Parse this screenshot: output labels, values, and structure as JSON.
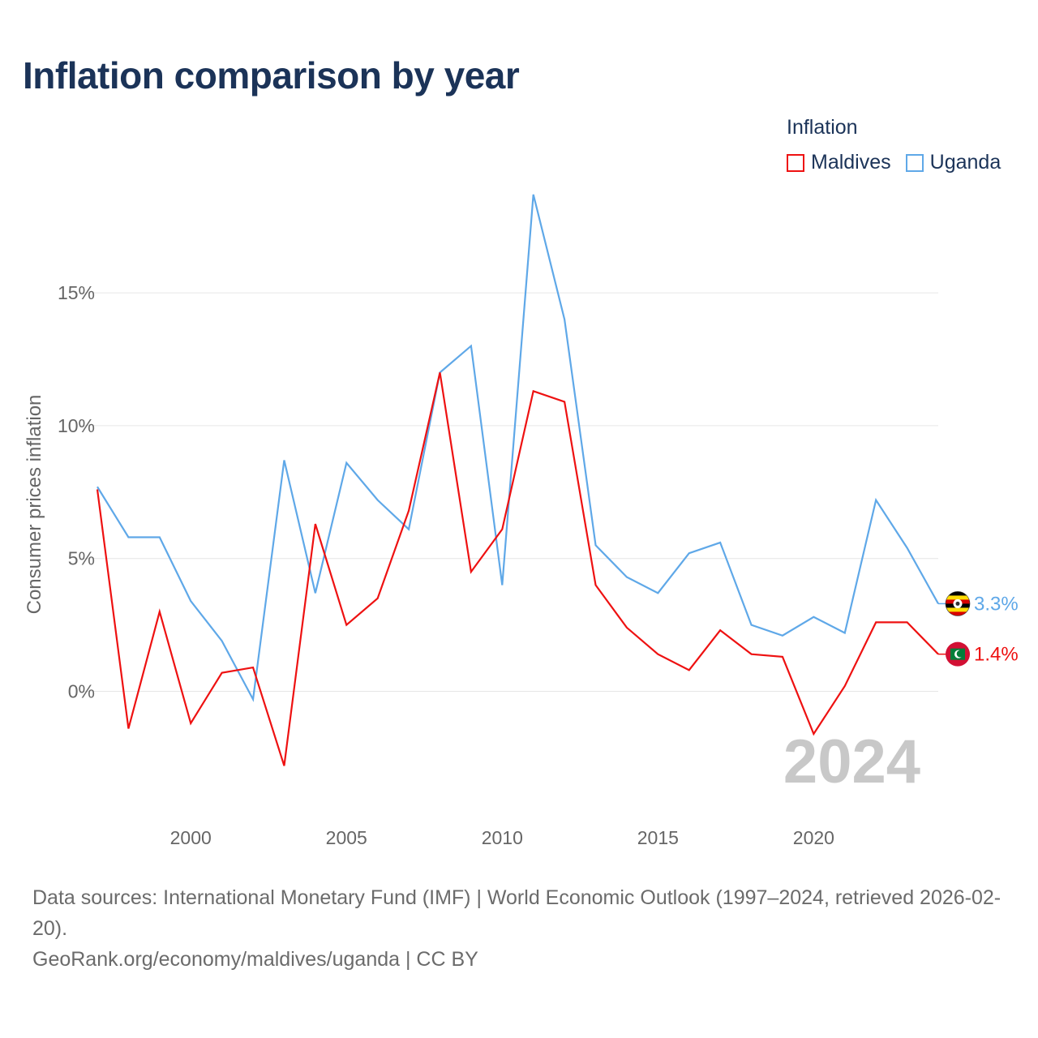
{
  "title": "Inflation comparison by year",
  "legend": {
    "title": "Inflation",
    "items": [
      {
        "label": "Maldives",
        "color": "#ee1111"
      },
      {
        "label": "Uganda",
        "color": "#5fa8e8"
      }
    ]
  },
  "footer": {
    "sources": "Data sources: International Monetary Fund (IMF) | World Economic Outlook (1997–2024, retrieved 2026-02-20).",
    "credit": "GeoRank.org/economy/maldives/uganda | CC BY"
  },
  "chart_data": {
    "type": "line",
    "title": "Inflation comparison by year",
    "ylabel": "Consumer prices inflation",
    "xlabel": "",
    "x": [
      1997,
      1998,
      1999,
      2000,
      2001,
      2002,
      2003,
      2004,
      2005,
      2006,
      2007,
      2008,
      2009,
      2010,
      2011,
      2012,
      2013,
      2014,
      2015,
      2016,
      2017,
      2018,
      2019,
      2020,
      2021,
      2022,
      2023,
      2024
    ],
    "xlim": [
      1997,
      2024
    ],
    "ylim": [
      -4.5,
      19
    ],
    "x_ticks": [
      {
        "value": 2000,
        "label": "2000"
      },
      {
        "value": 2005,
        "label": "2005"
      },
      {
        "value": 2010,
        "label": "2010"
      },
      {
        "value": 2015,
        "label": "2015"
      },
      {
        "value": 2020,
        "label": "2020"
      }
    ],
    "y_ticks": [
      {
        "value": 0,
        "label": "0%"
      },
      {
        "value": 5,
        "label": "5%"
      },
      {
        "value": 10,
        "label": "10%"
      },
      {
        "value": 15,
        "label": "15%"
      }
    ],
    "grid": true,
    "year_watermark": "2024",
    "series": [
      {
        "name": "Uganda",
        "color": "#5fa8e8",
        "end_label": "3.3%",
        "flag": "uganda-flag-icon",
        "values": [
          7.7,
          5.8,
          5.8,
          3.4,
          1.9,
          -0.3,
          8.7,
          3.7,
          8.6,
          7.2,
          6.1,
          12.0,
          13.0,
          4.0,
          18.7,
          14.0,
          5.5,
          4.3,
          3.7,
          5.2,
          5.6,
          2.5,
          2.1,
          2.8,
          2.2,
          7.2,
          5.4,
          3.3
        ]
      },
      {
        "name": "Maldives",
        "color": "#ee1111",
        "end_label": "1.4%",
        "flag": "maldives-flag-icon",
        "values": [
          7.6,
          -1.4,
          3.0,
          -1.2,
          0.7,
          0.9,
          -2.8,
          6.3,
          2.5,
          3.5,
          6.8,
          12.0,
          4.5,
          6.1,
          11.3,
          10.9,
          4.0,
          2.4,
          1.4,
          0.8,
          2.3,
          1.4,
          1.3,
          -1.6,
          0.2,
          2.6,
          2.6,
          1.4
        ]
      }
    ]
  }
}
